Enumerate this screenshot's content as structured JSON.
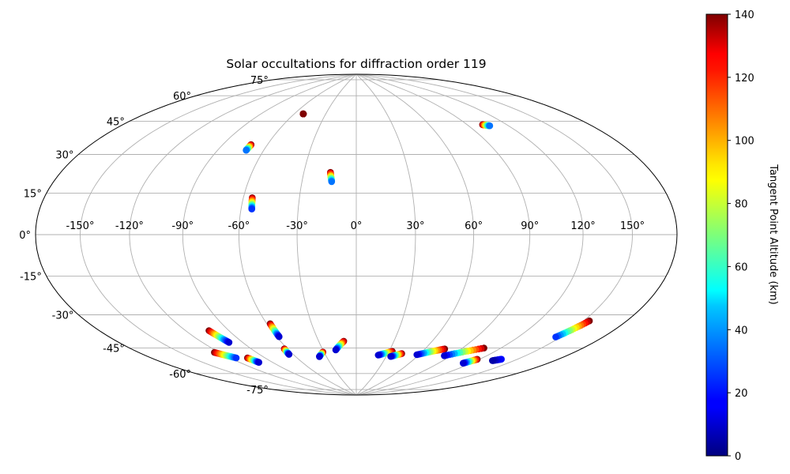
{
  "chart_data": {
    "type": "scatter",
    "projection": "hammer",
    "title": "Solar occultations for diffraction order 119",
    "xlabel": "",
    "ylabel": "",
    "lon_ticks": [
      "-150°",
      "-120°",
      "-90°",
      "-60°",
      "-30°",
      "0°",
      "30°",
      "60°",
      "90°",
      "120°",
      "150°"
    ],
    "lon_tick_values": [
      -150,
      -120,
      -90,
      -60,
      -30,
      0,
      30,
      60,
      90,
      120,
      150
    ],
    "lat_ticks": [
      "-75°",
      "-60°",
      "-45°",
      "-30°",
      "-15°",
      "0°",
      "15°",
      "30°",
      "45°",
      "60°",
      "75°"
    ],
    "lat_tick_values": [
      -75,
      -60,
      -45,
      -30,
      -15,
      0,
      15,
      30,
      45,
      60,
      75
    ],
    "grid": true,
    "colorbar": {
      "label": "Tangent Point Altitude (km)",
      "min": 0,
      "max": 140,
      "ticks": [
        "0",
        "20",
        "40",
        "60",
        "80",
        "100",
        "120",
        "140"
      ],
      "tick_values": [
        0,
        20,
        40,
        60,
        80,
        100,
        120,
        140
      ],
      "colormap": "jet",
      "position": "right"
    },
    "series": [
      {
        "lon_start": -51.5,
        "lat_start": 63.2,
        "lon_end": -51.5,
        "lat_end": 63.2,
        "alt_start": 140,
        "alt_end": 140
      },
      {
        "lon_start": -71.0,
        "lat_start": 44.8,
        "lon_end": -71.4,
        "lat_end": 41.8,
        "alt_start": 140,
        "alt_end": 35
      },
      {
        "lon_start": -55.2,
        "lat_start": 18.2,
        "lon_end": -54.3,
        "lat_end": 12.6,
        "alt_start": 140,
        "alt_end": 25
      },
      {
        "lon_start": -14.8,
        "lat_start": 31.8,
        "lon_end": -13.6,
        "lat_end": 27.0,
        "alt_start": 140,
        "alt_end": 35
      },
      {
        "lon_start": 101.8,
        "lat_start": 53.5,
        "lon_end": 106.0,
        "lat_end": 52.5,
        "alt_start": 140,
        "alt_end": 35
      },
      {
        "lon_start": 154.0,
        "lat_start": -35.8,
        "lon_end": 146.5,
        "lat_end": -44.5,
        "alt_start": 140,
        "alt_end": 25
      },
      {
        "lon_start": -124.0,
        "lat_start": -55.7,
        "lon_end": -115.0,
        "lat_end": -60.0,
        "alt_start": 140,
        "alt_end": 25
      },
      {
        "lon_start": -103.8,
        "lat_start": -45.7,
        "lon_end": -100.2,
        "lat_end": -52.4,
        "alt_start": 140,
        "alt_end": 10
      },
      {
        "lon_start": -105.4,
        "lat_start": -61.0,
        "lon_end": -102.8,
        "lat_end": -64.0,
        "alt_start": 140,
        "alt_end": 10
      },
      {
        "lon_start": -57.8,
        "lat_start": -45.0,
        "lon_end": -58.1,
        "lat_end": -52.1,
        "alt_start": 140,
        "alt_end": 10
      },
      {
        "lon_start": -62.7,
        "lat_start": -58.8,
        "lon_end": -63.8,
        "lat_end": -62.0,
        "alt_start": 140,
        "alt_end": 10
      },
      {
        "lon_start": -31.0,
        "lat_start": -62.0,
        "lon_end": -37.0,
        "lat_end": -64.5,
        "alt_start": 140,
        "alt_end": 10
      },
      {
        "lon_start": -10.0,
        "lat_start": -56.0,
        "lon_end": -18.5,
        "lat_end": -61.0,
        "alt_start": 140,
        "alt_end": 10
      },
      {
        "lon_start": 33.0,
        "lat_start": -61.5,
        "lon_end": 21.5,
        "lat_end": -64.0,
        "alt_start": 140,
        "alt_end": 10
      },
      {
        "lon_start": 43.0,
        "lat_start": -62.5,
        "lon_end": 34.5,
        "lat_end": -64.5,
        "alt_start": 140,
        "alt_end": 10
      },
      {
        "lon_start": 76.5,
        "lat_start": -58.0,
        "lon_end": 58.0,
        "lat_end": -62.5,
        "alt_start": 140,
        "alt_end": 10
      },
      {
        "lon_start": 107.0,
        "lat_start": -55.0,
        "lon_end": 84.0,
        "lat_end": -61.5,
        "alt_start": 140,
        "alt_end": 10
      },
      {
        "lon_start": 118.0,
        "lat_start": -60.5,
        "lon_end": 113.0,
        "lat_end": -63.5,
        "alt_start": 140,
        "alt_end": 10
      },
      {
        "lon_start": 137.5,
        "lat_start": -58.0,
        "lon_end": 133.0,
        "lat_end": -59.5,
        "alt_start": 20,
        "alt_end": 5
      }
    ]
  }
}
